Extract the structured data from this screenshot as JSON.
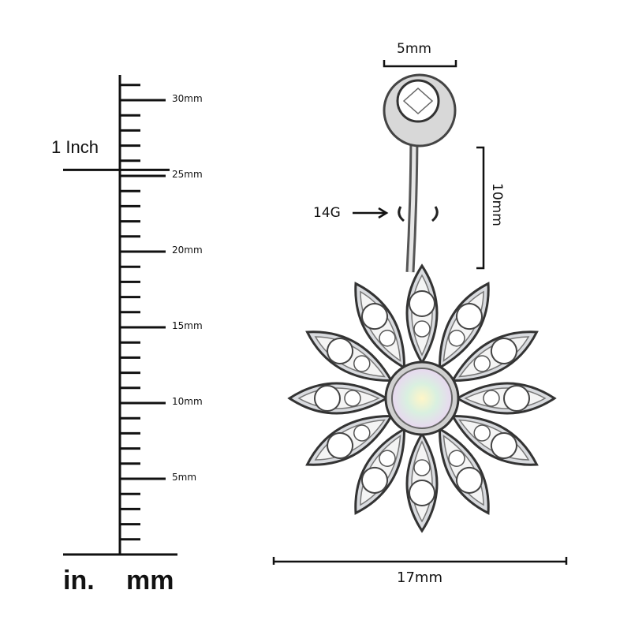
{
  "ruler": {
    "tick_labels": [
      "30mm",
      "25mm",
      "20mm",
      "15mm",
      "10mm",
      "5mm"
    ],
    "inch_label": "1 Inch",
    "unit_in": "in.",
    "unit_mm": "mm",
    "max_mm": 30
  },
  "product": {
    "ball_diameter": "5mm",
    "bar_length": "10mm",
    "gauge": "14G",
    "width": "17mm",
    "colors": {
      "metal": "#c9ccd1",
      "outline": "#3a3a3a",
      "center_gem": "#e8d8f0"
    }
  }
}
